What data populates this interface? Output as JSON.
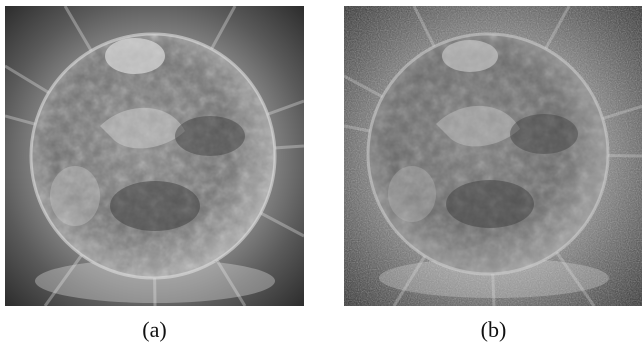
{
  "figure": {
    "panels": [
      {
        "caption": "(a)",
        "description_icon": "solar-euv-image-icon"
      },
      {
        "caption": "(b)",
        "description_icon": "solar-euv-image-noisy-icon"
      }
    ]
  },
  "colors": {
    "background": "#ffffff",
    "image_frame": "#4a4a4a",
    "disk": "#7f7f7f",
    "caption_text": "#111111"
  }
}
